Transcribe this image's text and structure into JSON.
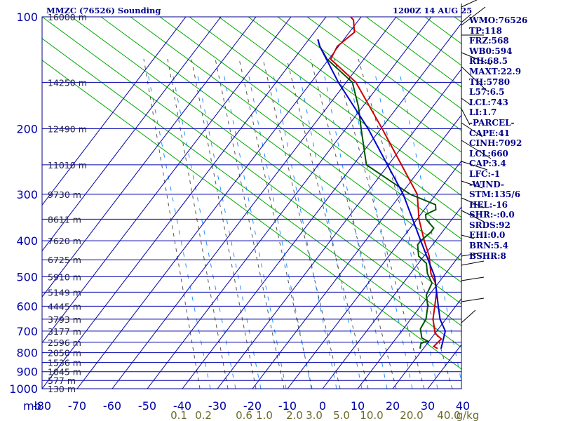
{
  "header": {
    "title": "MMZC (76526) Sounding",
    "time": "1200Z 14 AUG 25"
  },
  "sidebar": {
    "items": [
      "WMO:76526",
      "TP:118",
      "FRZ:568",
      "WB0:594",
      "RH:68.5",
      "MAXT:22.9",
      "TH:5780",
      "L57:6.5",
      "LCL:743",
      "LI:1.7",
      "-PARCEL-",
      "CAPE:41",
      "CINH:7092",
      "LCL:660",
      "CAP:3.4",
      "LFC:-1",
      "-WIND-",
      "STM:135/6",
      "HEL:-16",
      "SHR:-:0.0",
      "SRDS:92",
      "EHI:0.0",
      "BRN:5.4",
      "BSHR:8"
    ]
  },
  "colors": {
    "frame": "#00008b",
    "grid": "#0000aa",
    "dry_adiabat": "#00aa00",
    "moist_adiabat": "#555555",
    "mixing_ratio": "#1e90ff",
    "temperature": "#cc0000",
    "dewpoint": "#005500",
    "parcel": "#0000cc",
    "mixing_ratio_label": "#6b6b2a"
  },
  "chart_data": {
    "type": "line",
    "title": "MMZC (76526) Sounding",
    "subtitle": "1200Z 14 AUG 25",
    "y_axis": {
      "label": "mb",
      "scale": "log",
      "range": [
        1000,
        100
      ],
      "ticks": [
        100,
        200,
        300,
        400,
        500,
        600,
        700,
        800,
        900,
        1000
      ]
    },
    "x_axis": {
      "range": [
        -80,
        40
      ],
      "ticks": [
        -80,
        -70,
        -60,
        -50,
        -40,
        -30,
        -20,
        -10,
        0,
        10,
        20,
        30,
        40
      ]
    },
    "height_labels": [
      {
        "p": 100,
        "label": "16000 m"
      },
      {
        "p": 150,
        "label": "14250 m"
      },
      {
        "p": 200,
        "label": "12490 m"
      },
      {
        "p": 250,
        "label": "11010 m"
      },
      {
        "p": 300,
        "label": "9730 m"
      },
      {
        "p": 350,
        "label": "8611 m"
      },
      {
        "p": 400,
        "label": "7620 m"
      },
      {
        "p": 450,
        "label": "6725 m"
      },
      {
        "p": 500,
        "label": "5910 m"
      },
      {
        "p": 550,
        "label": "5149 m"
      },
      {
        "p": 600,
        "label": "4445 m"
      },
      {
        "p": 650,
        "label": "3793 m"
      },
      {
        "p": 700,
        "label": "3177 m"
      },
      {
        "p": 750,
        "label": "2596 m"
      },
      {
        "p": 800,
        "label": "2050 m"
      },
      {
        "p": 850,
        "label": "1536 m"
      },
      {
        "p": 900,
        "label": "1045 m"
      },
      {
        "p": 950,
        "label": "577 m"
      },
      {
        "p": 1000,
        "label": "130 m"
      }
    ],
    "mixing_ratio_labels": [
      "0.1",
      "0.2",
      "0.6",
      "1.0",
      "2.0",
      "3.0",
      "5.0",
      "10.0",
      "20.0",
      "40.0",
      "g/kg"
    ],
    "series": [
      {
        "key": "temperature",
        "points": [
          [
            780,
            13
          ],
          [
            770,
            11
          ],
          [
            735,
            10
          ],
          [
            710,
            6
          ],
          [
            690,
            4
          ],
          [
            650,
            0
          ],
          [
            600,
            -4
          ],
          [
            550,
            -8
          ],
          [
            520,
            -11
          ],
          [
            490,
            -15
          ],
          [
            470,
            -17
          ],
          [
            440,
            -20
          ],
          [
            400,
            -25
          ],
          [
            350,
            -31
          ],
          [
            300,
            -36
          ],
          [
            250,
            -45
          ],
          [
            200,
            -55
          ],
          [
            150,
            -67
          ],
          [
            130,
            -76
          ],
          [
            120,
            -75
          ],
          [
            110,
            -71
          ],
          [
            102,
            -72
          ],
          [
            100,
            -73
          ]
        ]
      },
      {
        "key": "dewpoint",
        "points": [
          [
            780,
            8
          ],
          [
            755,
            6
          ],
          [
            745,
            7
          ],
          [
            740,
            6
          ],
          [
            730,
            4
          ],
          [
            710,
            2
          ],
          [
            690,
            0
          ],
          [
            650,
            -2
          ],
          [
            600,
            -6
          ],
          [
            560,
            -10
          ],
          [
            520,
            -12
          ],
          [
            490,
            -16
          ],
          [
            470,
            -18
          ],
          [
            460,
            -19
          ],
          [
            450,
            -21
          ],
          [
            440,
            -23
          ],
          [
            430,
            -24
          ],
          [
            410,
            -26
          ],
          [
            400,
            -26
          ],
          [
            380,
            -25
          ],
          [
            370,
            -25
          ],
          [
            350,
            -29
          ],
          [
            340,
            -30
          ],
          [
            330,
            -28
          ],
          [
            320,
            -29
          ],
          [
            300,
            -38
          ],
          [
            250,
            -55
          ],
          [
            200,
            -61
          ],
          [
            175,
            -64
          ],
          [
            150,
            -68
          ],
          [
            130,
            -77
          ],
          [
            120,
            -80
          ],
          [
            115,
            -81
          ]
        ]
      },
      {
        "key": "parcel",
        "points": [
          [
            780,
            14
          ],
          [
            700,
            8
          ],
          [
            650,
            2
          ],
          [
            600,
            -3
          ],
          [
            500,
            -13
          ],
          [
            400,
            -26
          ],
          [
            300,
            -40
          ],
          [
            250,
            -49
          ],
          [
            200,
            -59
          ],
          [
            150,
            -72
          ],
          [
            120,
            -80
          ],
          [
            115,
            -81
          ]
        ]
      }
    ]
  }
}
